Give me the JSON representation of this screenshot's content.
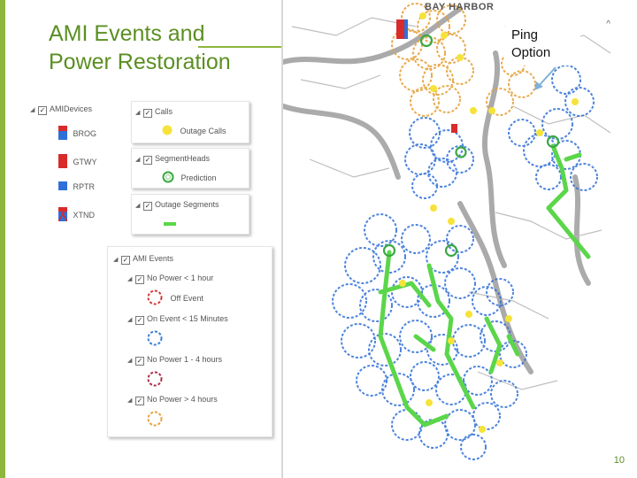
{
  "slide": {
    "title_line1": "AMI Events and",
    "title_line2": "Power Restoration",
    "page_number": "10",
    "accent_color": "#8cb63c",
    "title_color": "#5b8f22"
  },
  "map": {
    "place_label": "BAY HARBOR",
    "callout": {
      "line1": "Ping",
      "line2": "Option"
    },
    "corner_mark": "^"
  },
  "legend_devices": {
    "group": "AMIDevices",
    "items": [
      {
        "label": "BROG",
        "icon": "device-red-blue-icon"
      },
      {
        "label": "GTWY",
        "icon": "device-red-icon"
      },
      {
        "label": "RPTR",
        "icon": "device-blue-icon"
      },
      {
        "label": "XTND",
        "icon": "device-crossed-icon"
      }
    ]
  },
  "legend_calls": {
    "group": "Calls",
    "item": "Outage Calls",
    "color": "#f5e33a"
  },
  "legend_segment_heads": {
    "group": "SegmentHeads",
    "item": "Prediction",
    "color": "#3aa845"
  },
  "legend_outage_segments": {
    "group": "Outage Segments",
    "color": "#5bd64a"
  },
  "legend_ami_events": {
    "group": "AMI Events",
    "items": [
      {
        "label": "No Power < 1 hour",
        "sub": "Off Event",
        "color": "#d03b3b"
      },
      {
        "label": "On Event < 15 Minutes",
        "sub": "",
        "color": "#3b7fd0"
      },
      {
        "label": "No Power 1 - 4 hours",
        "sub": "",
        "color": "#a8304a"
      },
      {
        "label": "No Power > 4 hours",
        "sub": "",
        "color": "#e6a23c"
      }
    ]
  }
}
